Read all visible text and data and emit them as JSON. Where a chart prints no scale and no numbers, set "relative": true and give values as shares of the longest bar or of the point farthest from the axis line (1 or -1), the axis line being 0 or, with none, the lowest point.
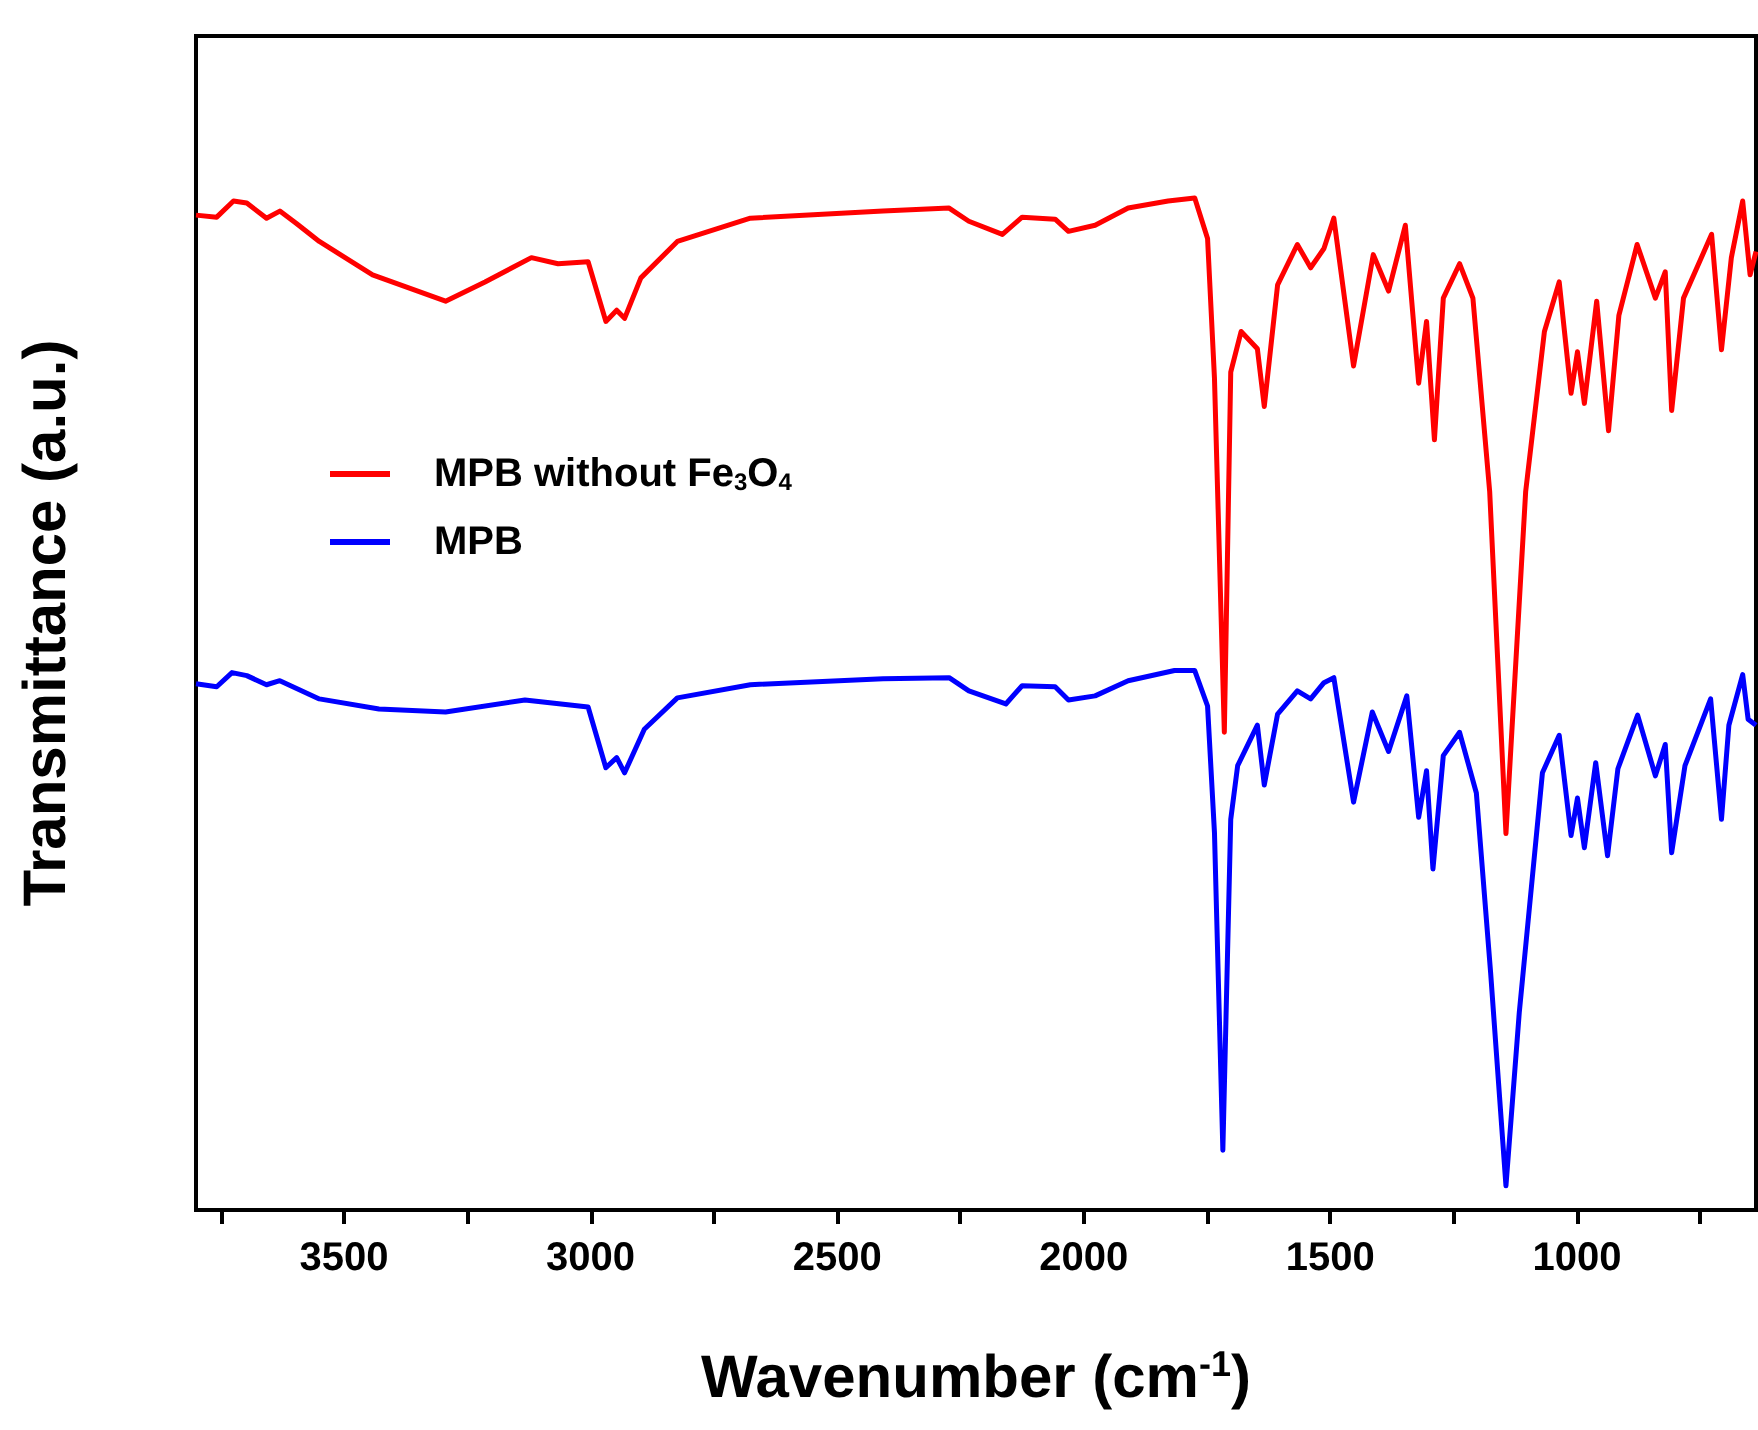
{
  "chart_data": {
    "type": "line",
    "relative": true,
    "xlabel": "Wavenumber (cm$^{-1}$)",
    "ylabel": "Transmittance (a.u.)",
    "xlim": [
      3800,
      637
    ],
    "xticks": [
      {
        "value": 3750,
        "label": null
      },
      3500,
      {
        "value": 3250,
        "label": null
      },
      3000,
      {
        "value": 2750,
        "label": null
      },
      2500,
      {
        "value": 2250,
        "label": null
      },
      2000,
      {
        "value": 1750,
        "label": null
      },
      1500,
      {
        "value": 1250,
        "label": null
      },
      1000,
      {
        "value": 750,
        "label": null
      }
    ],
    "legend": "left",
    "grid": false,
    "marker": "none",
    "line_style": "solid",
    "tick_labels": "x",
    "series": [
      {
        "name": "MPB without Fe$_{3}$O$_{4}$",
        "color": "#ff0000",
        "x": [
          3800,
          3758,
          3724,
          3697,
          3657,
          3630,
          3597,
          3550,
          3442,
          3294,
          3214,
          3120,
          3066,
          3005,
          2969,
          2947,
          2931,
          2898,
          2824,
          2676,
          2407,
          2273,
          2233,
          2165,
          2125,
          2058,
          2031,
          1977,
          1910,
          1829,
          1775,
          1749,
          1735,
          1715,
          1702,
          1681,
          1648,
          1634,
          1607,
          1567,
          1540,
          1513,
          1493,
          1453,
          1413,
          1382,
          1348,
          1321,
          1305,
          1289,
          1271,
          1238,
          1211,
          1177,
          1144,
          1104,
          1066,
          1036,
          1012,
          999,
          985,
          960,
          936,
          915,
          878,
          841,
          821,
          808,
          784,
          727,
          707,
          687,
          664,
          649,
          637
        ],
        "values": [
          0.983,
          0.981,
          0.997,
          0.995,
          0.98,
          0.987,
          0.975,
          0.957,
          0.924,
          0.898,
          0.917,
          0.941,
          0.935,
          0.937,
          0.878,
          0.889,
          0.881,
          0.921,
          0.957,
          0.98,
          0.987,
          0.99,
          0.977,
          0.964,
          0.981,
          0.979,
          0.967,
          0.973,
          0.99,
          0.997,
          1,
          0.96,
          0.822,
          0.472,
          0.828,
          0.868,
          0.851,
          0.794,
          0.914,
          0.954,
          0.931,
          0.95,
          0.98,
          0.834,
          0.944,
          0.908,
          0.973,
          0.817,
          0.878,
          0.761,
          0.901,
          0.935,
          0.901,
          0.71,
          0.372,
          0.71,
          0.868,
          0.917,
          0.807,
          0.848,
          0.797,
          0.898,
          0.77,
          0.884,
          0.954,
          0.901,
          0.927,
          0.79,
          0.901,
          0.964,
          0.85,
          0.941,
          0.997,
          0.924,
          0.947
        ]
      },
      {
        "name": "MPB",
        "color": "#0000ff",
        "x": [
          3800,
          3758,
          3727,
          3697,
          3657,
          3630,
          3550,
          3429,
          3294,
          3133,
          3005,
          2969,
          2947,
          2931,
          2891,
          2824,
          2676,
          2407,
          2273,
          2233,
          2158,
          2125,
          2058,
          2031,
          1977,
          1910,
          1816,
          1775,
          1749,
          1735,
          1718,
          1702,
          1688,
          1648,
          1634,
          1607,
          1567,
          1540,
          1513,
          1493,
          1453,
          1415,
          1382,
          1345,
          1321,
          1305,
          1292,
          1271,
          1238,
          1204,
          1175,
          1144,
          1117,
          1070,
          1036,
          1012,
          999,
          985,
          962,
          938,
          917,
          877,
          841,
          821,
          808,
          781,
          729,
          707,
          692,
          664,
          653,
          637
        ],
        "values": [
          0.52,
          0.517,
          0.531,
          0.528,
          0.519,
          0.523,
          0.505,
          0.495,
          0.492,
          0.504,
          0.497,
          0.437,
          0.447,
          0.432,
          0.475,
          0.506,
          0.519,
          0.525,
          0.526,
          0.513,
          0.5,
          0.518,
          0.517,
          0.504,
          0.508,
          0.523,
          0.533,
          0.533,
          0.498,
          0.373,
          0.059,
          0.386,
          0.439,
          0.479,
          0.42,
          0.49,
          0.513,
          0.505,
          0.521,
          0.526,
          0.403,
          0.492,
          0.453,
          0.508,
          0.388,
          0.434,
          0.337,
          0.449,
          0.472,
          0.412,
          0.234,
          0.024,
          0.195,
          0.432,
          0.469,
          0.37,
          0.407,
          0.358,
          0.442,
          0.35,
          0.436,
          0.489,
          0.429,
          0.46,
          0.353,
          0.439,
          0.505,
          0.386,
          0.479,
          0.529,
          0.485,
          0.479
        ]
      }
    ]
  }
}
